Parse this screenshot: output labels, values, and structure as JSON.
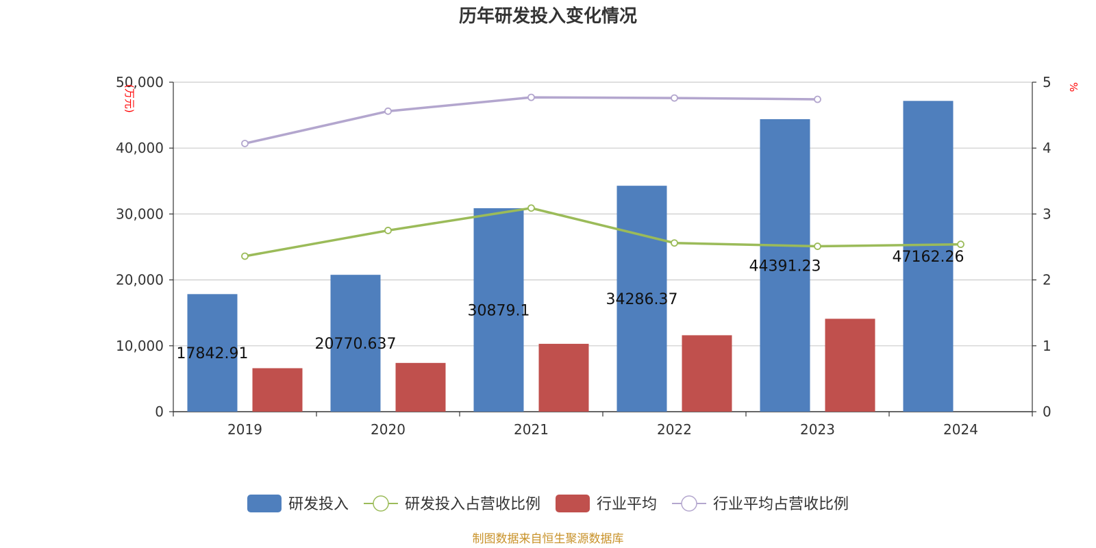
{
  "chart_data": {
    "type": "bar",
    "title": "历年研发投入变化情况",
    "categories": [
      "2019",
      "2020",
      "2021",
      "2022",
      "2023",
      "2024"
    ],
    "y_left": {
      "unit": "(万元)",
      "ylim": [
        0,
        50000
      ],
      "ticks": [
        "0",
        "10,000",
        "20,000",
        "30,000",
        "40,000",
        "50,000"
      ]
    },
    "y_right": {
      "unit": "%",
      "ylim": [
        0,
        5
      ],
      "ticks": [
        "0",
        "1",
        "2",
        "3",
        "4",
        "5"
      ]
    },
    "series": [
      {
        "name": "研发投入",
        "type": "bar",
        "axis": "left",
        "color": "#4f7fbd",
        "values": [
          17842.91,
          20770.637,
          30879.1,
          34286.37,
          44391.23,
          47162.26
        ],
        "labels": [
          "17842.91",
          "20770.637",
          "30879.1",
          "34286.37",
          "44391.23",
          "47162.26"
        ]
      },
      {
        "name": "研发投入占营收比例",
        "type": "line",
        "axis": "right",
        "color": "#9bbb59",
        "values": [
          2.36,
          2.75,
          3.09,
          2.56,
          2.51,
          2.54
        ]
      },
      {
        "name": "行业平均",
        "type": "bar",
        "axis": "left",
        "color": "#c0504d",
        "values": [
          6600,
          7400,
          10300,
          11600,
          14100,
          null
        ]
      },
      {
        "name": "行业平均占营收比例",
        "type": "line",
        "axis": "right",
        "color": "#b3a6ce",
        "values": [
          4.07,
          4.56,
          4.77,
          4.76,
          4.74,
          null
        ]
      }
    ],
    "grid": true,
    "legend_position": "bottom-center"
  },
  "footer": {
    "source": "制图数据来自恒生聚源数据库"
  }
}
